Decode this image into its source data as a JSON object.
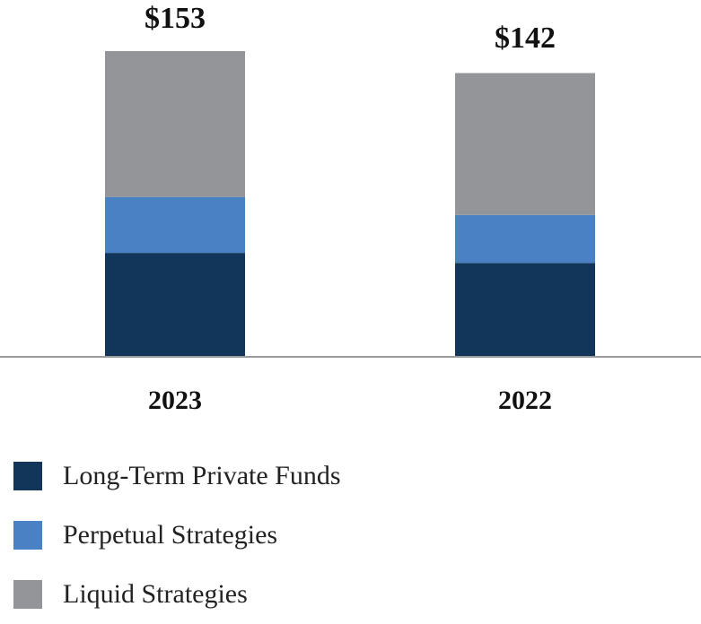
{
  "chart_data": {
    "type": "stacked-bar",
    "categories": [
      "2023",
      "2022"
    ],
    "totals": [
      "$153",
      "$142"
    ],
    "total_values": [
      153,
      142
    ],
    "series": [
      {
        "name": "Long-Term Private Funds",
        "color": "#12365a",
        "values": [
          52,
          47
        ]
      },
      {
        "name": "Perpetual Strategies",
        "color": "#4a81c4",
        "values": [
          28,
          24
        ]
      },
      {
        "name": "Liquid Strategies",
        "color": "#939598",
        "values": [
          73,
          71
        ]
      }
    ],
    "ylim": [
      0,
      153
    ],
    "xlabel": "",
    "ylabel": "",
    "grid": false,
    "legend": "bottom-left"
  }
}
